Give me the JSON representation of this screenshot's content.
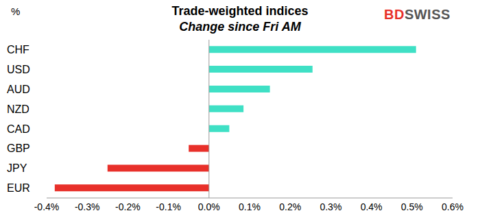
{
  "chart_data": {
    "type": "bar",
    "orientation": "horizontal",
    "title": "Trade-weighted indices",
    "subtitle": "Change since Fri AM",
    "y_label": "%",
    "annotations": [
      "BDSWISS"
    ],
    "categories": [
      "CHF",
      "USD",
      "AUD",
      "NZD",
      "CAD",
      "GBP",
      "JPY",
      "EUR"
    ],
    "values": [
      0.51,
      0.255,
      0.15,
      0.085,
      0.05,
      -0.05,
      -0.25,
      -0.38
    ],
    "colors": [
      "#3fe0c5",
      "#3fe0c5",
      "#3fe0c5",
      "#3fe0c5",
      "#3fe0c5",
      "#e8302a",
      "#e8302a",
      "#e8302a"
    ],
    "xlim": [
      -0.4,
      0.6
    ],
    "xticks": [
      {
        "value": -0.4,
        "label": "-0.4%"
      },
      {
        "value": -0.3,
        "label": "-0.3%"
      },
      {
        "value": -0.2,
        "label": "-0.2%"
      },
      {
        "value": -0.1,
        "label": "-0.1%"
      },
      {
        "value": 0,
        "label": "0.0%"
      },
      {
        "value": 0.1,
        "label": "0.1%"
      },
      {
        "value": 0.2,
        "label": "0.2%"
      },
      {
        "value": 0.3,
        "label": "0.3%"
      },
      {
        "value": 0.4,
        "label": "0.4%"
      },
      {
        "value": 0.5,
        "label": "0.5%"
      },
      {
        "value": 0.6,
        "label": "0.6%"
      }
    ],
    "grid": false
  }
}
